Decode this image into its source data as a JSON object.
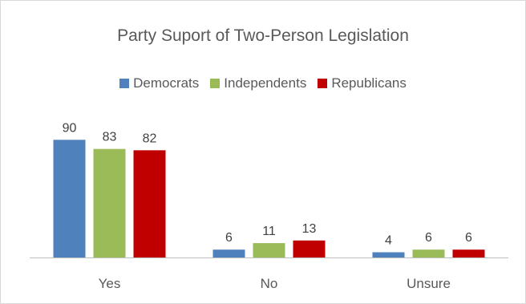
{
  "chart_data": {
    "type": "bar",
    "title": "Party Suport of Two-Person Legislation",
    "categories": [
      "Yes",
      "No",
      "Unsure"
    ],
    "series": [
      {
        "name": "Democrats",
        "color": "#4f81bd",
        "values": [
          90,
          6,
          4
        ]
      },
      {
        "name": "Independents",
        "color": "#9bbb59",
        "values": [
          83,
          11,
          6
        ]
      },
      {
        "name": "Republicans",
        "color": "#c00000",
        "values": [
          82,
          13,
          6
        ]
      }
    ],
    "ylim": [
      0,
      100
    ],
    "grid": false,
    "legend": "top",
    "data_labels": true
  }
}
